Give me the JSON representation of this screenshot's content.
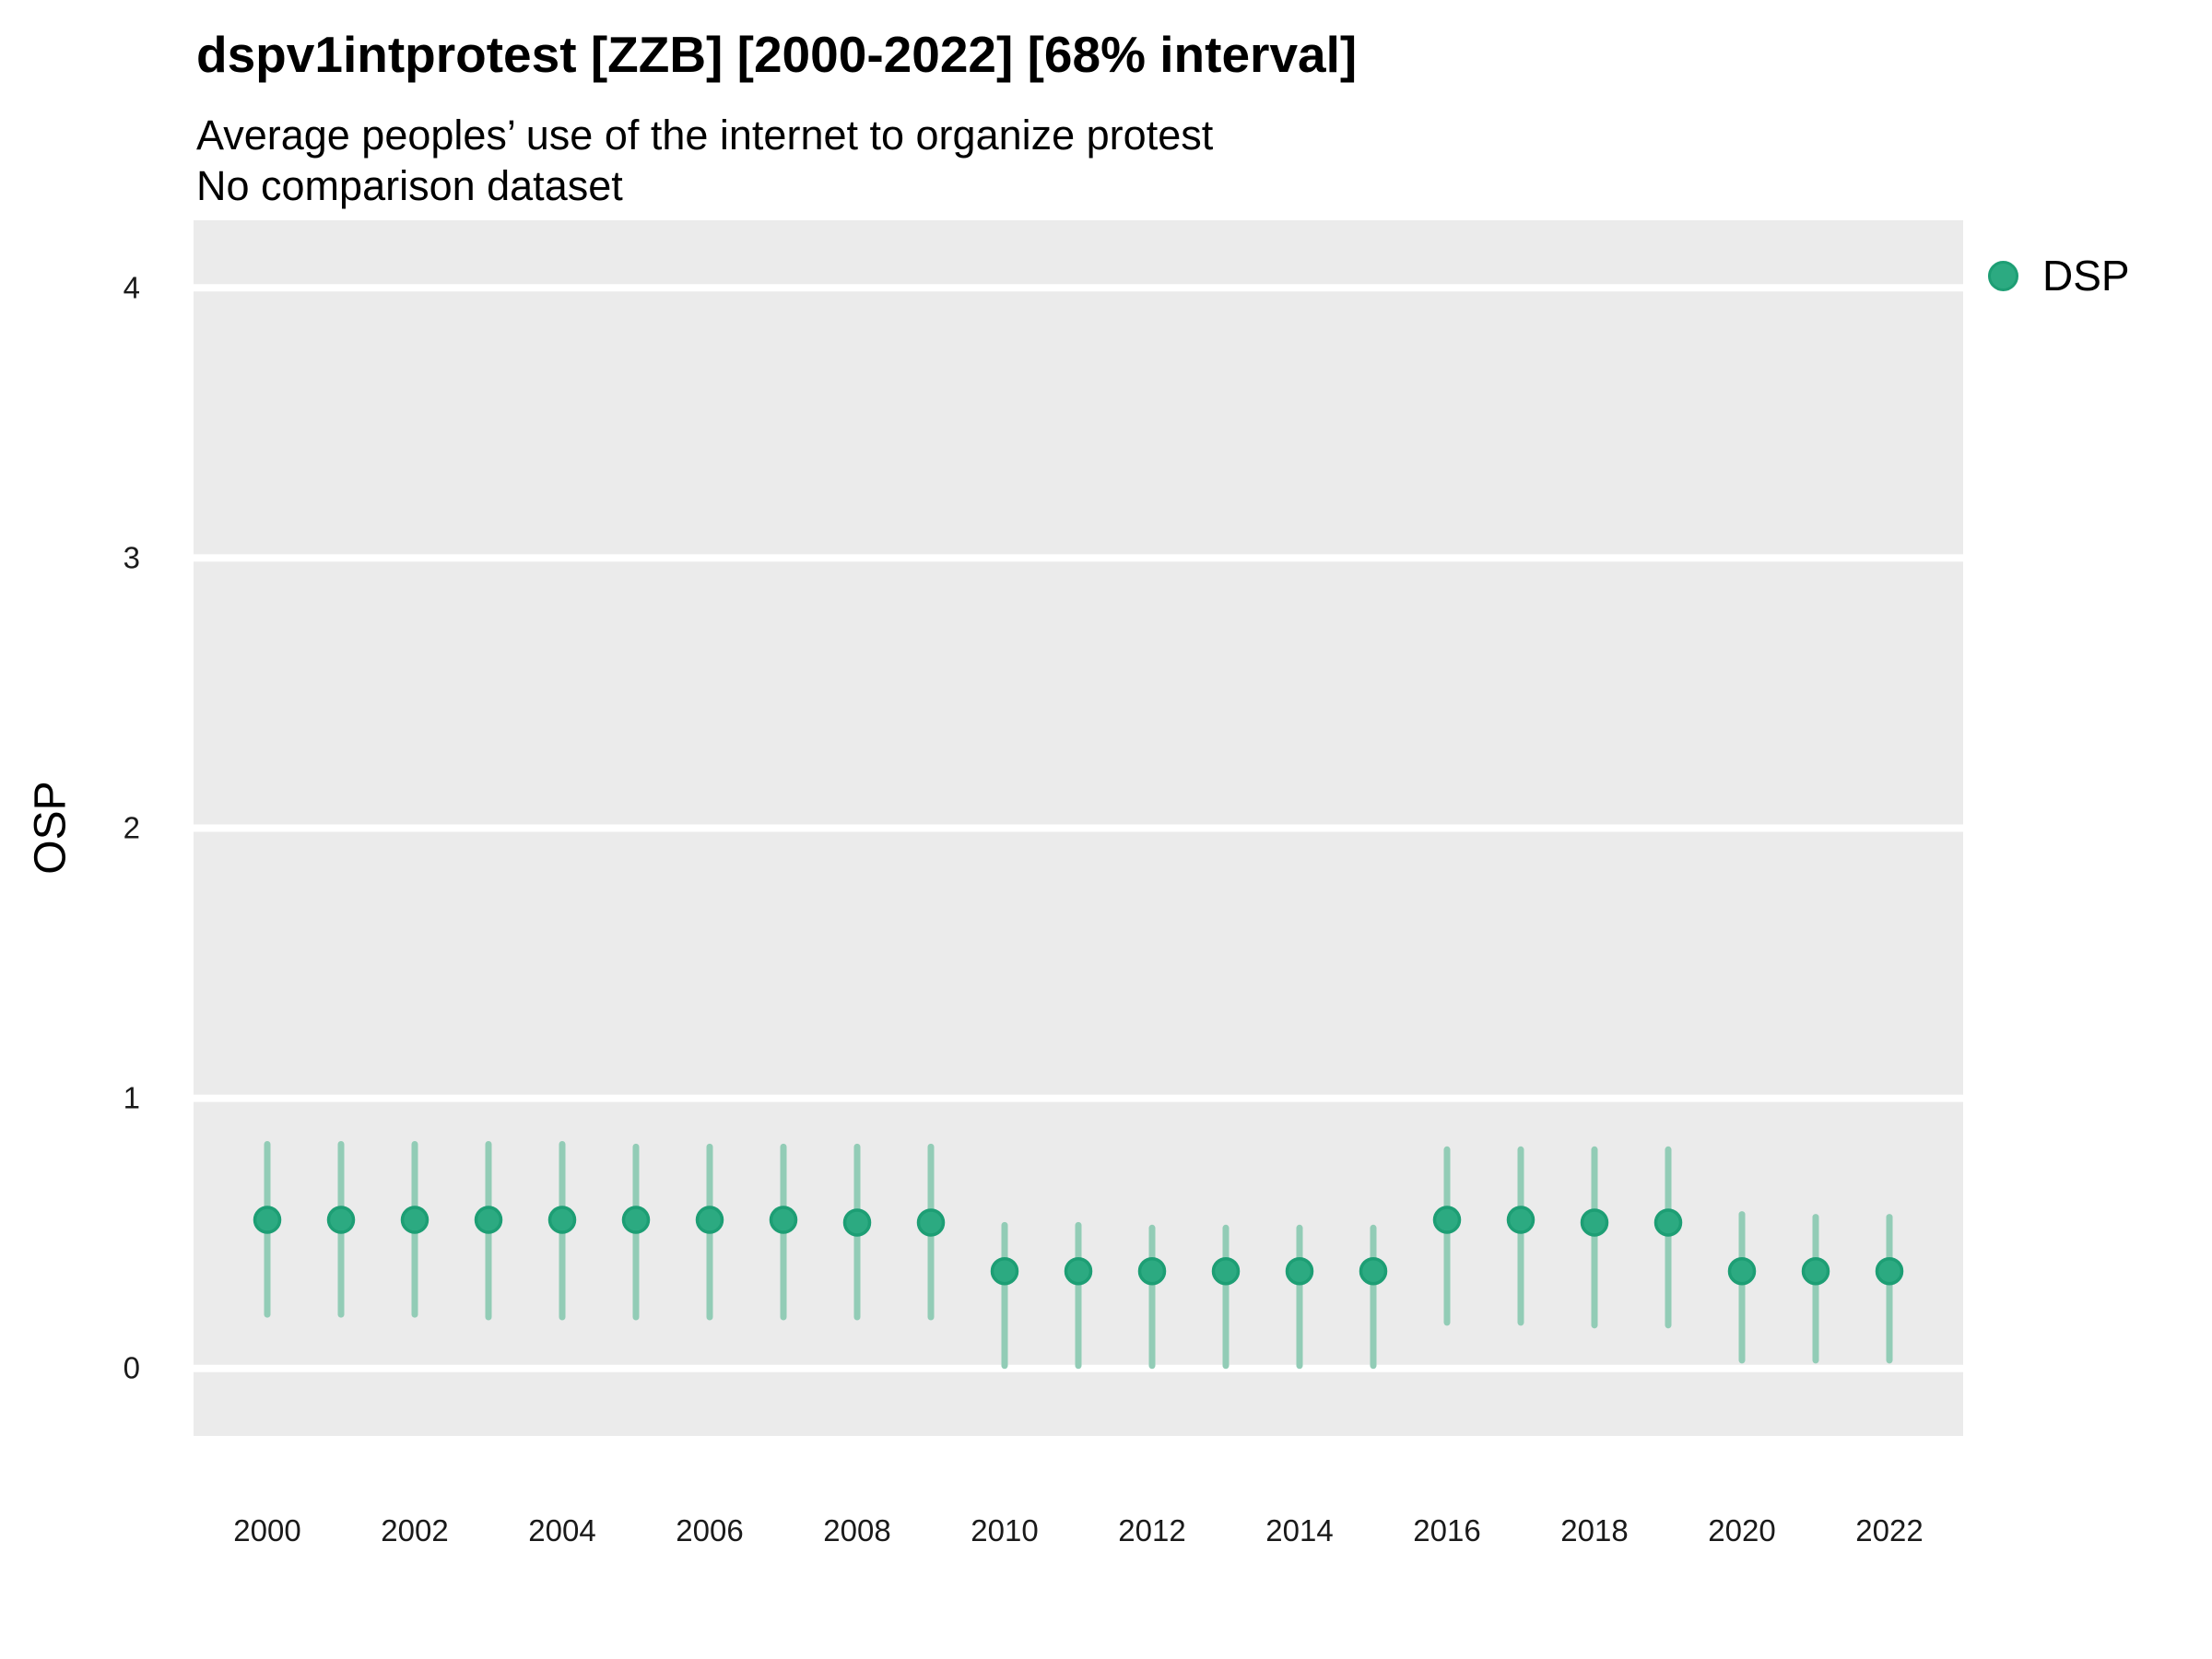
{
  "header": {
    "title": "dspv1intprotest [ZZB] [2000-2022] [68% interval]",
    "subtitle": "Average peoples’ use of the internet to organize protest",
    "note": "No comparison dataset"
  },
  "legend": {
    "position": "right",
    "items": [
      {
        "label": "DSP",
        "color": "#2caa81",
        "stroke": "#1d9e74",
        "marker": "circle"
      }
    ]
  },
  "colors": {
    "panel_bg": "#ebebeb",
    "gridline": "#ffffff",
    "point_fill": "#2caa81",
    "point_stroke": "#1d9e74",
    "errorbar": "#92ccb6",
    "tick_text": "#1a1a1a"
  },
  "chart_data": {
    "type": "scatter",
    "title": "dspv1intprotest [ZZB] [2000-2022] [68% interval]",
    "subtitle": "Average peoples’ use of the internet to organize protest",
    "note": "No comparison dataset",
    "xlabel": "",
    "ylabel": "OSP",
    "interval": "68%",
    "grid": "major-horizontal-only",
    "legend_position": "right",
    "xlim": [
      1999,
      2023
    ],
    "ylim": [
      -0.25,
      4.25
    ],
    "xticks": [
      2000,
      2002,
      2004,
      2006,
      2008,
      2010,
      2012,
      2014,
      2016,
      2018,
      2020,
      2022
    ],
    "yticks": [
      0,
      1,
      2,
      3,
      4
    ],
    "x": [
      2000,
      2001,
      2002,
      2003,
      2004,
      2005,
      2006,
      2007,
      2008,
      2009,
      2010,
      2011,
      2012,
      2013,
      2014,
      2015,
      2016,
      2017,
      2018,
      2019,
      2020,
      2021,
      2022
    ],
    "series": [
      {
        "name": "DSP",
        "values": [
          0.55,
          0.55,
          0.55,
          0.55,
          0.55,
          0.55,
          0.55,
          0.55,
          0.54,
          0.54,
          0.36,
          0.36,
          0.36,
          0.36,
          0.36,
          0.36,
          0.55,
          0.55,
          0.54,
          0.54,
          0.36,
          0.36,
          0.36
        ],
        "lower": [
          0.2,
          0.2,
          0.2,
          0.19,
          0.19,
          0.19,
          0.19,
          0.19,
          0.19,
          0.19,
          0.01,
          0.01,
          0.01,
          0.01,
          0.01,
          0.01,
          0.17,
          0.17,
          0.16,
          0.16,
          0.03,
          0.03,
          0.03
        ],
        "upper": [
          0.83,
          0.83,
          0.83,
          0.83,
          0.83,
          0.82,
          0.82,
          0.82,
          0.82,
          0.82,
          0.53,
          0.53,
          0.52,
          0.52,
          0.52,
          0.52,
          0.81,
          0.81,
          0.81,
          0.81,
          0.57,
          0.56,
          0.56
        ]
      }
    ]
  }
}
